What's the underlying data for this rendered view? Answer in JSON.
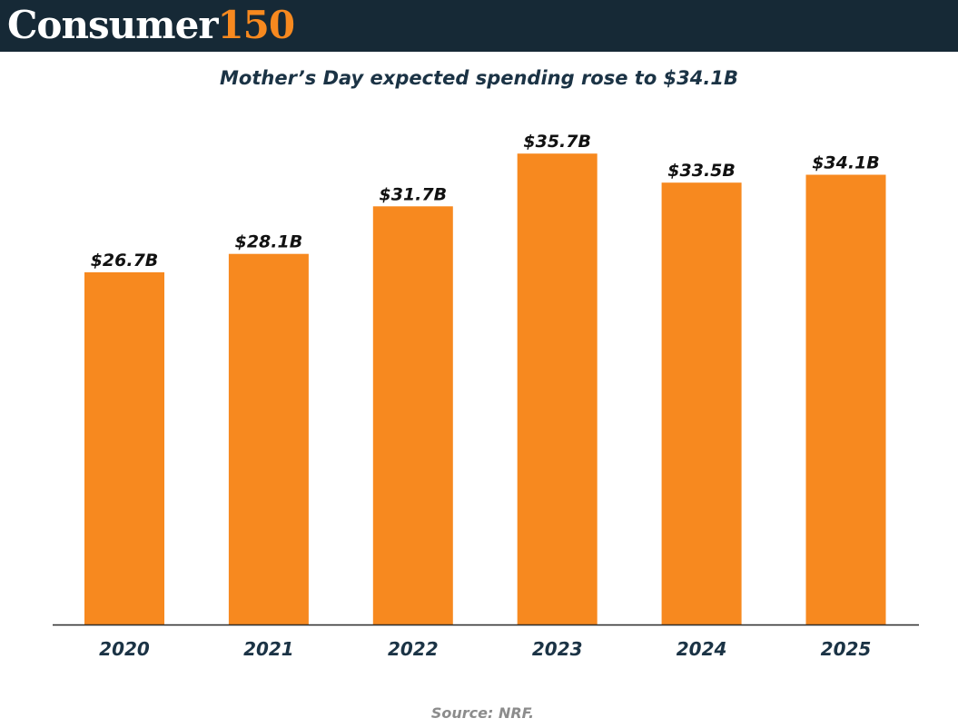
{
  "brand": {
    "name_main": "Consumer",
    "name_number": "150"
  },
  "colors": {
    "header_bg": "#162936",
    "bar": "#f7891f",
    "brand_accent": "#f7891f",
    "title_text": "#1b3345",
    "source_text": "#8c8c8c"
  },
  "source": "Source: NRF.",
  "chart_data": {
    "type": "bar",
    "title": "Mother’s Day expected spending rose to $34.1B",
    "categories": [
      "2020",
      "2021",
      "2022",
      "2023",
      "2024",
      "2025"
    ],
    "values": [
      26.7,
      28.1,
      31.7,
      35.7,
      33.5,
      34.1
    ],
    "value_labels": [
      "$26.7B",
      "$28.1B",
      "$31.7B",
      "$35.7B",
      "$33.5B",
      "$34.1B"
    ],
    "xlabel": "",
    "ylabel": "",
    "ylim": [
      0,
      40
    ],
    "grid": false,
    "legend": "none"
  }
}
